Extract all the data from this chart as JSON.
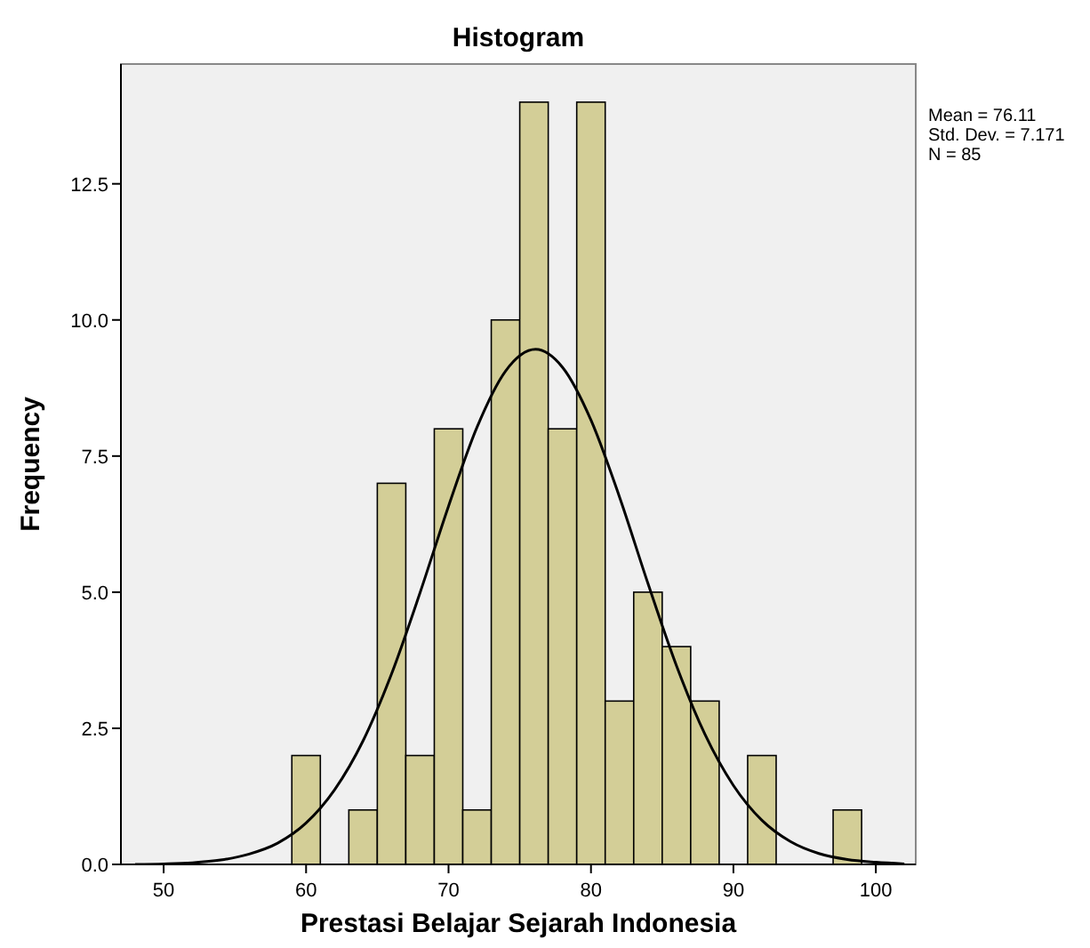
{
  "chart_data": {
    "type": "histogram",
    "title": "Histogram",
    "xlabel": "Prestasi Belajar Sejarah Indonesia",
    "ylabel": "Frequency",
    "bins": [
      59,
      61,
      63,
      65,
      67,
      69,
      71,
      73,
      75,
      77,
      79,
      81,
      83,
      85,
      87,
      89,
      91,
      93,
      95,
      97,
      99
    ],
    "series": [
      {
        "color": "#d3ce97",
        "values": [
          2,
          0,
          1,
          7,
          2,
          8,
          1,
          10,
          14,
          8,
          14,
          3,
          5,
          4,
          3,
          0,
          2,
          0,
          0,
          1
        ]
      },
      {
        "type": "line",
        "color": "#000000",
        "x": [
          48,
          50,
          52,
          54,
          56,
          58,
          60,
          62,
          64,
          66,
          68,
          70,
          72,
          74,
          76.11,
          78,
          80,
          82,
          84,
          86,
          88,
          90,
          92,
          94,
          96,
          98,
          100,
          102
        ],
        "values": [
          0,
          0.01,
          0.03,
          0.08,
          0.19,
          0.39,
          0.76,
          1.37,
          2.27,
          3.5,
          4.99,
          6.58,
          8.03,
          9.06,
          9.46,
          9.13,
          8.16,
          6.75,
          5.16,
          3.65,
          2.39,
          1.45,
          0.81,
          0.42,
          0.2,
          0.09,
          0.04,
          0.01
        ]
      }
    ],
    "xlim": [
      47,
      102.8
    ],
    "xticks": [
      50,
      60,
      70,
      80,
      90,
      100
    ],
    "ylim": [
      0,
      14.7
    ],
    "yticks": [
      {
        "value": 0,
        "label": "0.0"
      },
      {
        "value": 2.5,
        "label": "2.5"
      },
      {
        "value": 5,
        "label": "5.0"
      },
      {
        "value": 7.5,
        "label": "7.5"
      },
      {
        "value": 10,
        "label": "10.0"
      },
      {
        "value": 12.5,
        "label": "12.5"
      }
    ],
    "grid": false,
    "annotations": [
      "Mean = 76.11",
      "Std. Dev. = 7.171",
      "N = 85"
    ]
  }
}
